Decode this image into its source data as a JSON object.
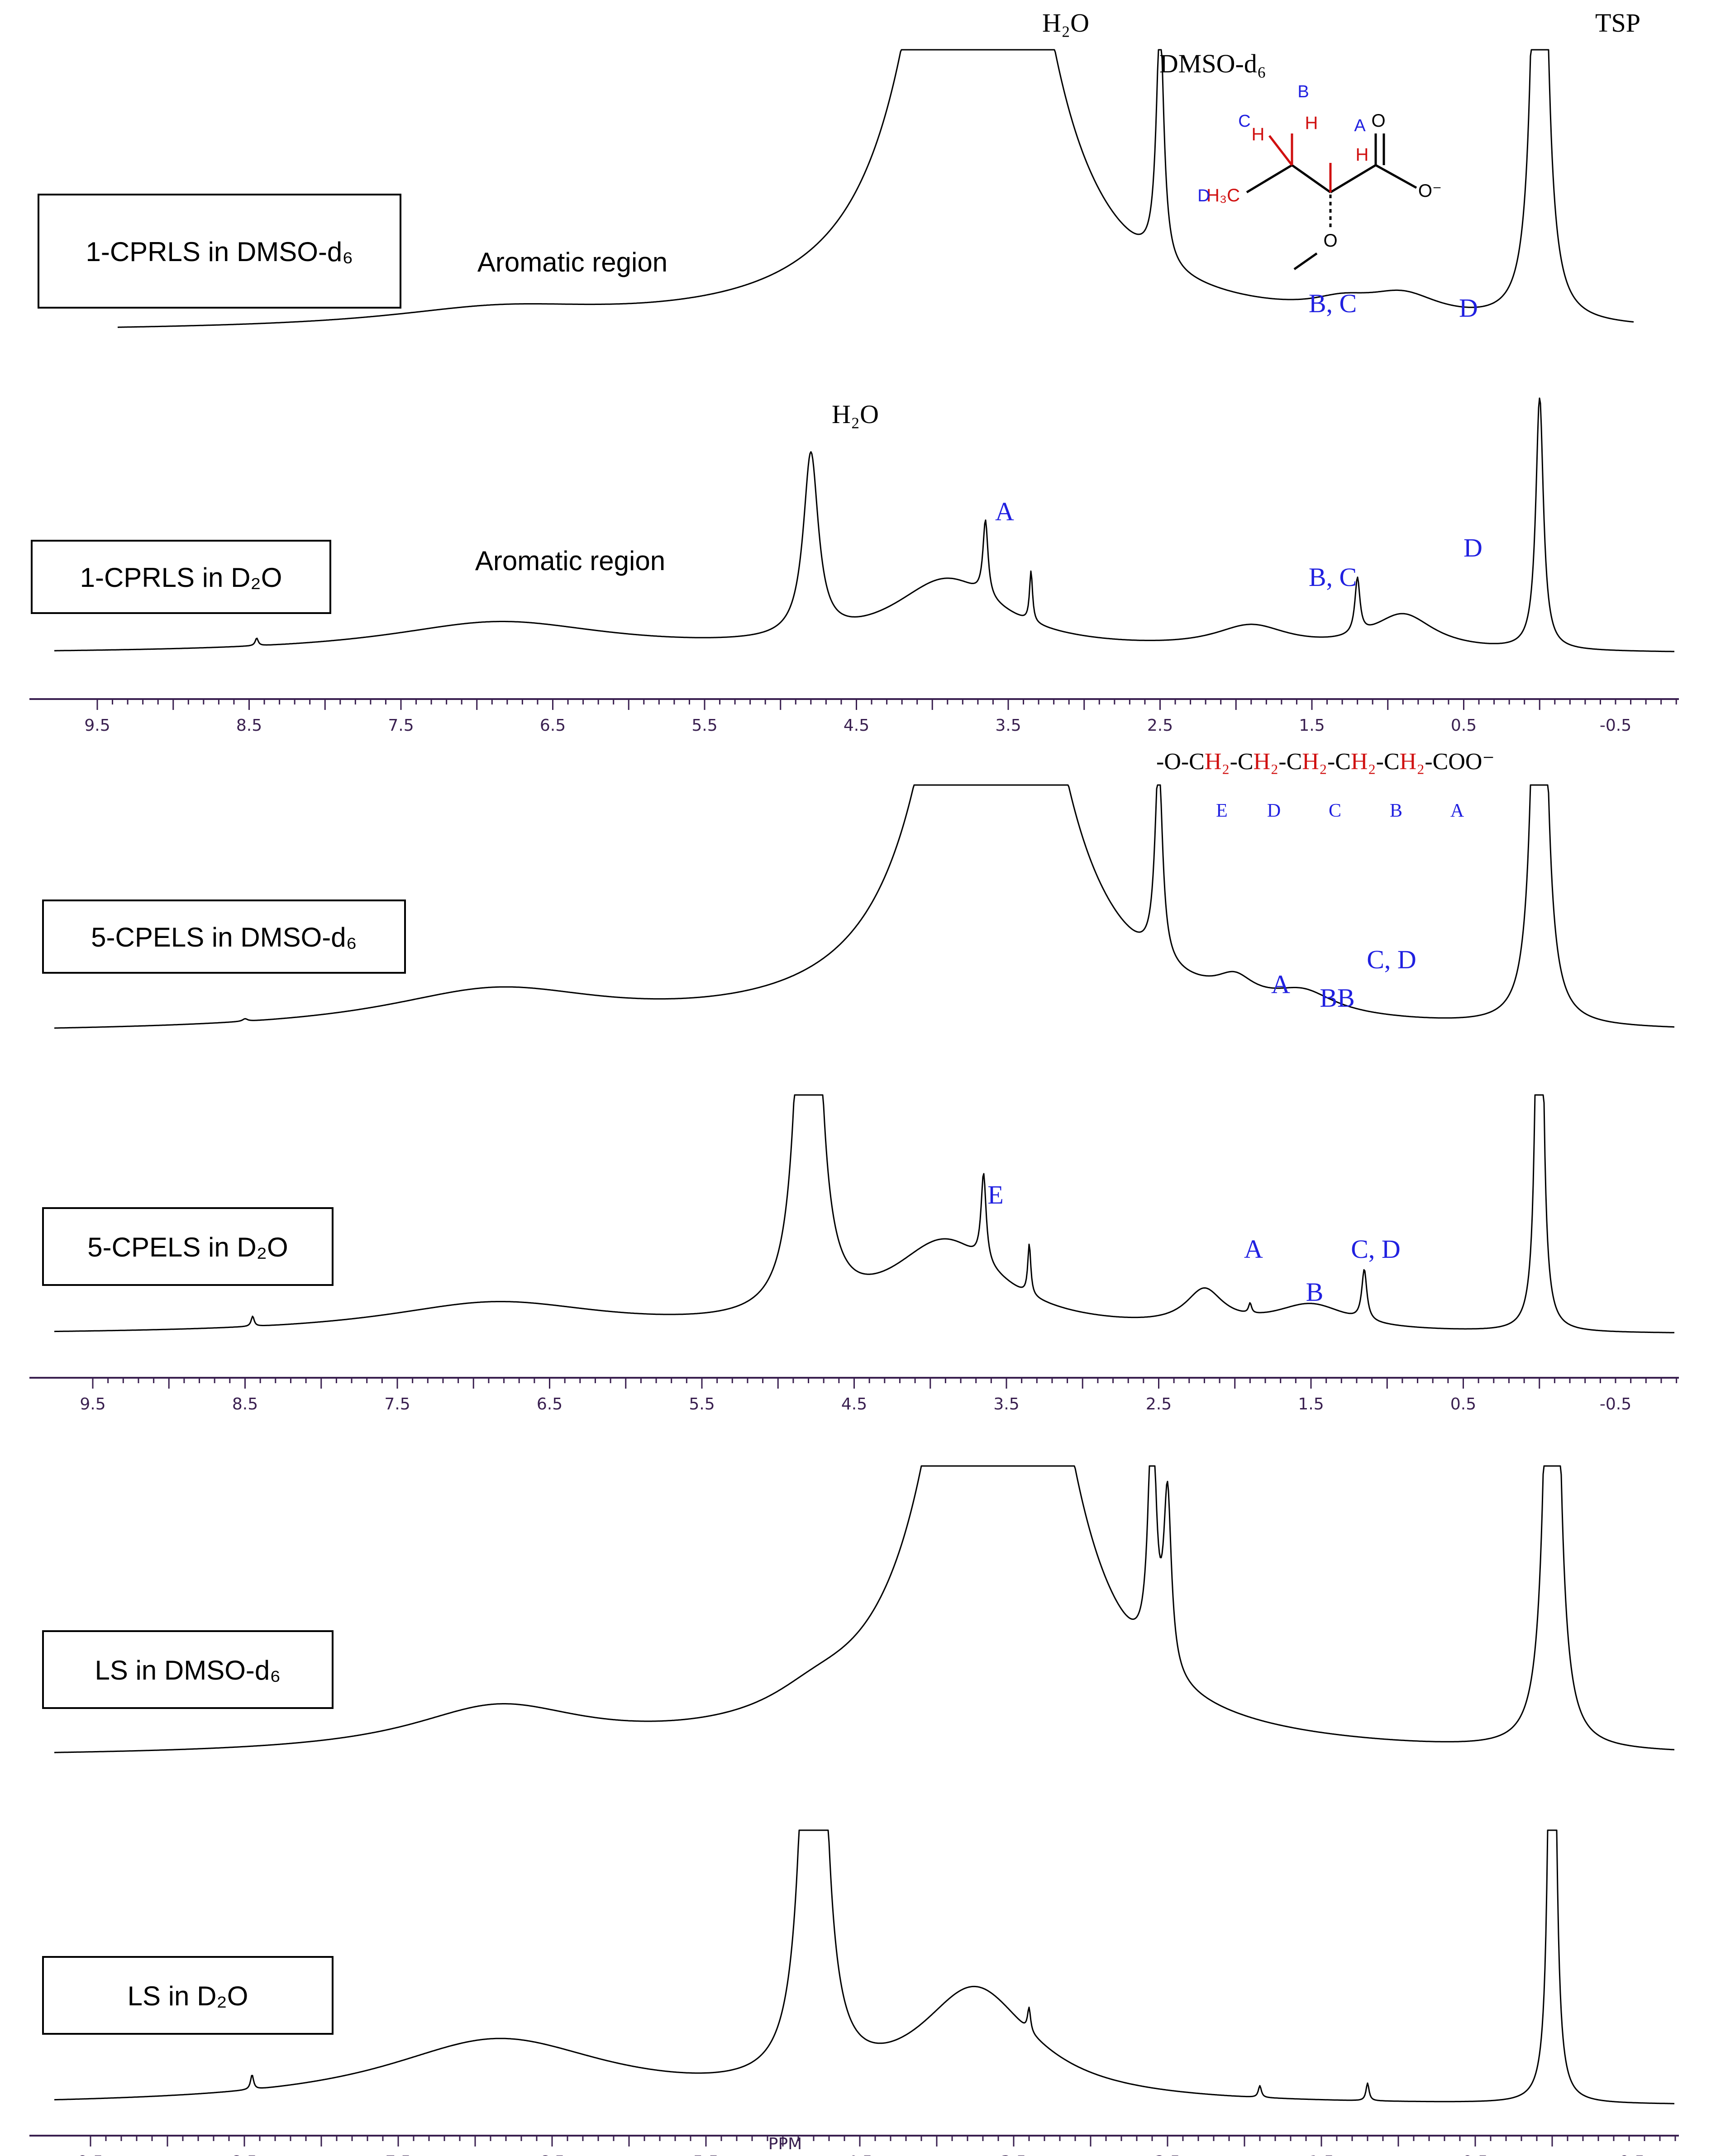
{
  "chart_data": {
    "type": "line",
    "x_unit": "PPM",
    "x_ticks": [
      9.5,
      8.5,
      7.5,
      6.5,
      5.5,
      4.5,
      3.5,
      2.5,
      1.5,
      0.5,
      -0.5
    ],
    "x_tick_labels": [
      "9.5",
      "8.5",
      "7.5",
      "6.5",
      "5.5",
      "4.5",
      "3.5",
      "2.5",
      "1.5",
      "0.5",
      "-0.5"
    ],
    "xlim": [
      10.0,
      -1.0
    ],
    "x_reversed": true,
    "top_annotations": {
      "water": "H₂O",
      "solvent": "DMSO-d₆",
      "reference": "TSP"
    },
    "structures": {
      "one_cprls": {
        "site_labels": [
          "A",
          "B",
          "C",
          "D"
        ],
        "atoms": {
          "h": "H",
          "methyl": "H₃C",
          "carbonyl_o": "O",
          "carboxylate": "O⁻",
          "ether_o": "O"
        }
      },
      "five_cpels": {
        "chain": [
          {
            "text": "-O-C",
            "red": false
          },
          {
            "text": "H₂",
            "red": true
          },
          {
            "text": "-C",
            "red": false
          },
          {
            "text": "H₂",
            "red": true
          },
          {
            "text": "-C",
            "red": false
          },
          {
            "text": "H₂",
            "red": true
          },
          {
            "text": "-C",
            "red": false
          },
          {
            "text": "H₂",
            "red": true
          },
          {
            "text": "-C",
            "red": false
          },
          {
            "text": "H₂",
            "red": true
          },
          {
            "text": "-COO⁻",
            "red": false
          }
        ],
        "site_labels": [
          "E",
          "D",
          "C",
          "B",
          "A"
        ]
      }
    },
    "series": [
      {
        "name": "1-CPRLS in DMSO-d₆",
        "region_label": "Aromatic region",
        "baseline_ppm": [
          10.0,
          -1.0
        ],
        "features": [
          {
            "ppm": 6.85,
            "intensity": 0.06,
            "width": 0.9,
            "shape": "broad"
          },
          {
            "ppm": 3.7,
            "intensity": 1.0,
            "width": 0.35,
            "shape": "peak",
            "clipped": true
          },
          {
            "ppm": 2.5,
            "intensity": 0.85,
            "width": 0.03,
            "shape": "sharp"
          },
          {
            "ppm": 1.3,
            "intensity": 0.04,
            "width": 0.25,
            "shape": "broad"
          },
          {
            "ppm": 0.9,
            "intensity": 0.08,
            "width": 0.3,
            "shape": "broad"
          },
          {
            "ppm": 0.0,
            "intensity": 1.0,
            "width": 0.04,
            "shape": "sharp",
            "clipped": true
          }
        ],
        "peak_labels": [
          {
            "text": "B, C",
            "ppm": 1.3
          },
          {
            "text": "D",
            "ppm": 0.45
          }
        ]
      },
      {
        "name": "1-CPRLS in D₂O",
        "region_label": "Aromatic region",
        "features": [
          {
            "ppm": 8.45,
            "intensity": 0.03,
            "width": 0.01,
            "shape": "sharp"
          },
          {
            "ppm": 6.85,
            "intensity": 0.12,
            "width": 0.9,
            "shape": "broad"
          },
          {
            "ppm": 4.8,
            "intensity": 0.72,
            "width": 0.06,
            "shape": "sharp"
          },
          {
            "ppm": 3.9,
            "intensity": 0.28,
            "width": 0.45,
            "shape": "broad"
          },
          {
            "ppm": 3.65,
            "intensity": 0.3,
            "width": 0.02,
            "shape": "sharp"
          },
          {
            "ppm": 3.35,
            "intensity": 0.2,
            "width": 0.01,
            "shape": "sharp"
          },
          {
            "ppm": 1.9,
            "intensity": 0.09,
            "width": 0.3,
            "shape": "broad"
          },
          {
            "ppm": 1.2,
            "intensity": 0.22,
            "width": 0.02,
            "shape": "sharp"
          },
          {
            "ppm": 0.9,
            "intensity": 0.14,
            "width": 0.25,
            "shape": "broad"
          },
          {
            "ppm": 0.0,
            "intensity": 1.0,
            "width": 0.03,
            "shape": "sharp"
          }
        ],
        "peak_labels": [
          {
            "text": "H₂O",
            "ppm": 4.8
          },
          {
            "text": "A",
            "ppm": 3.6
          },
          {
            "text": "B, C",
            "ppm": 1.2
          },
          {
            "text": "D",
            "ppm": 0.4
          }
        ]
      },
      {
        "name": "5-CPELS in DMSO-d₆",
        "features": [
          {
            "ppm": 8.5,
            "intensity": 0.01,
            "width": 0.02,
            "shape": "sharp"
          },
          {
            "ppm": 6.85,
            "intensity": 0.15,
            "width": 0.9,
            "shape": "broad"
          },
          {
            "ppm": 3.6,
            "intensity": 1.0,
            "width": 0.35,
            "shape": "peak",
            "clipped": true
          },
          {
            "ppm": 2.5,
            "intensity": 0.8,
            "width": 0.03,
            "shape": "sharp"
          },
          {
            "ppm": 2.0,
            "intensity": 0.08,
            "width": 0.15,
            "shape": "broad"
          },
          {
            "ppm": 1.55,
            "intensity": 0.08,
            "width": 0.25,
            "shape": "broad"
          },
          {
            "ppm": 0.0,
            "intensity": 1.0,
            "width": 0.04,
            "shape": "sharp",
            "clipped": true
          }
        ],
        "peak_labels": [
          {
            "text": "A",
            "ppm": 1.8
          },
          {
            "text": "BB",
            "ppm": 1.45
          },
          {
            "text": "C, D",
            "ppm": 1.1
          }
        ]
      },
      {
        "name": "5-CPELS in D₂O",
        "features": [
          {
            "ppm": 8.45,
            "intensity": 0.04,
            "width": 0.01,
            "shape": "sharp"
          },
          {
            "ppm": 6.85,
            "intensity": 0.12,
            "width": 0.9,
            "shape": "broad"
          },
          {
            "ppm": 4.8,
            "intensity": 1.0,
            "width": 0.06,
            "shape": "sharp",
            "clipped": true
          },
          {
            "ppm": 3.9,
            "intensity": 0.35,
            "width": 0.45,
            "shape": "broad"
          },
          {
            "ppm": 3.65,
            "intensity": 0.35,
            "width": 0.02,
            "shape": "sharp"
          },
          {
            "ppm": 3.35,
            "intensity": 0.2,
            "width": 0.01,
            "shape": "sharp"
          },
          {
            "ppm": 2.2,
            "intensity": 0.14,
            "width": 0.15,
            "shape": "broad"
          },
          {
            "ppm": 1.9,
            "intensity": 0.04,
            "width": 0.01,
            "shape": "sharp"
          },
          {
            "ppm": 1.5,
            "intensity": 0.1,
            "width": 0.3,
            "shape": "broad"
          },
          {
            "ppm": 1.15,
            "intensity": 0.2,
            "width": 0.02,
            "shape": "sharp"
          },
          {
            "ppm": 0.0,
            "intensity": 1.0,
            "width": 0.02,
            "shape": "sharp",
            "clipped": true
          }
        ],
        "peak_labels": [
          {
            "text": "E",
            "ppm": 3.65
          },
          {
            "text": "A",
            "ppm": 1.9
          },
          {
            "text": "B",
            "ppm": 1.55
          },
          {
            "text": "C, D",
            "ppm": 1.1
          }
        ]
      },
      {
        "name": "LS in DMSO-d₆",
        "features": [
          {
            "ppm": 6.85,
            "intensity": 0.15,
            "width": 0.7,
            "shape": "broad"
          },
          {
            "ppm": 4.8,
            "intensity": 0.06,
            "width": 0.35,
            "shape": "broad"
          },
          {
            "ppm": 3.6,
            "intensity": 1.0,
            "width": 0.35,
            "shape": "peak",
            "clipped": true
          },
          {
            "ppm": 2.6,
            "intensity": 0.88,
            "width": 0.03,
            "shape": "sharp"
          },
          {
            "ppm": 2.5,
            "intensity": 0.6,
            "width": 0.03,
            "shape": "sharp"
          },
          {
            "ppm": 0.0,
            "intensity": 1.0,
            "width": 0.04,
            "shape": "sharp",
            "clipped": true
          }
        ],
        "peak_labels": []
      },
      {
        "name": "LS in D₂O",
        "features": [
          {
            "ppm": 8.45,
            "intensity": 0.05,
            "width": 0.01,
            "shape": "sharp"
          },
          {
            "ppm": 6.85,
            "intensity": 0.22,
            "width": 0.9,
            "shape": "broad"
          },
          {
            "ppm": 4.8,
            "intensity": 1.0,
            "width": 0.06,
            "shape": "sharp",
            "clipped": true
          },
          {
            "ppm": 3.75,
            "intensity": 0.38,
            "width": 0.45,
            "shape": "broad"
          },
          {
            "ppm": 3.4,
            "intensity": 0.08,
            "width": 0.01,
            "shape": "sharp"
          },
          {
            "ppm": 1.9,
            "intensity": 0.04,
            "width": 0.01,
            "shape": "sharp"
          },
          {
            "ppm": 1.2,
            "intensity": 0.06,
            "width": 0.01,
            "shape": "sharp"
          },
          {
            "ppm": 0.0,
            "intensity": 1.0,
            "width": 0.02,
            "shape": "sharp",
            "clipped": true
          }
        ],
        "peak_labels": []
      }
    ]
  }
}
